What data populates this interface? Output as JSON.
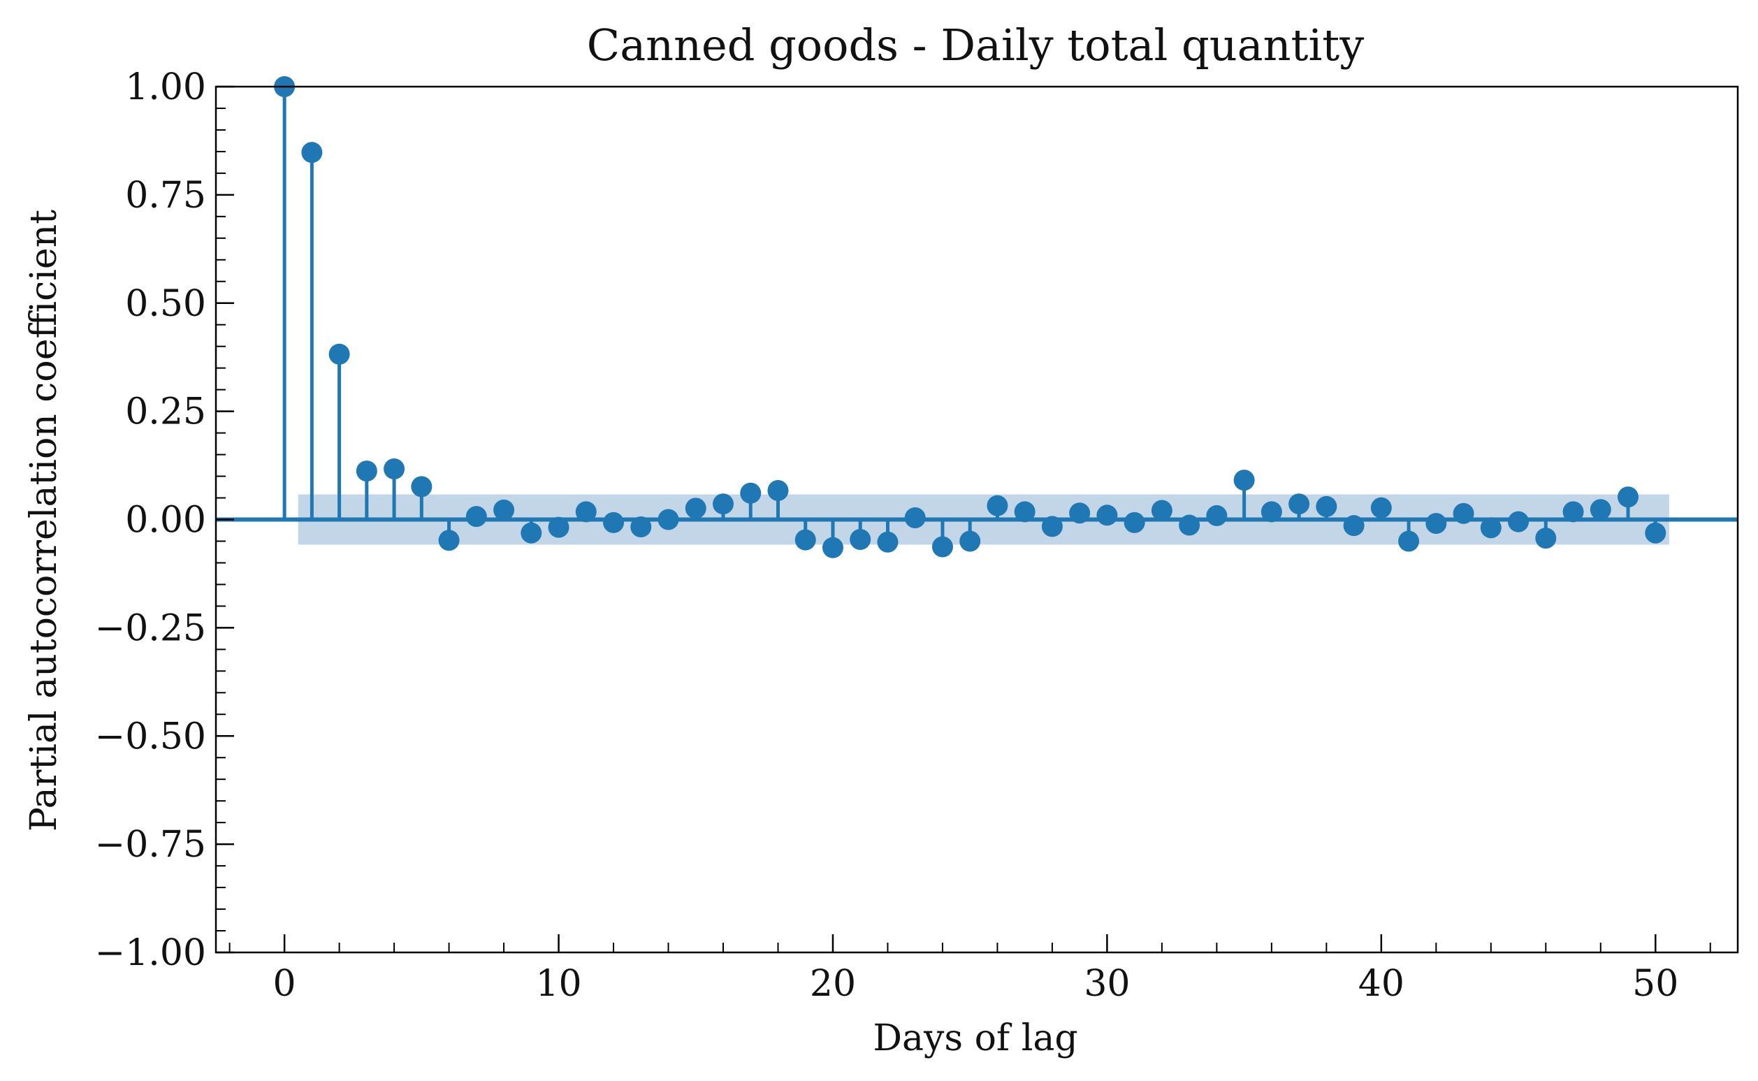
{
  "chart_data": {
    "type": "stem",
    "title": "Canned goods - Daily total quantity",
    "xlabel": "Days of lag",
    "ylabel": "Partial autocorrelation coefficient",
    "xlim": [
      -2.5,
      53
    ],
    "ylim": [
      -1.0,
      1.0
    ],
    "x_ticks": [
      0,
      10,
      20,
      30,
      40,
      50
    ],
    "x_tick_labels": [
      "0",
      "10",
      "20",
      "30",
      "40",
      "50"
    ],
    "y_ticks": [
      1.0,
      0.75,
      0.5,
      0.25,
      0.0,
      -0.25,
      -0.5,
      -0.75,
      -1.0
    ],
    "y_tick_labels": [
      "1.00",
      "0.75",
      "0.50",
      "0.25",
      "0.00",
      "−0.25",
      "−0.50",
      "−0.75",
      "−1.00"
    ],
    "grid": false,
    "colors": {
      "series": "#1f77b4",
      "band": "#c3d6e8"
    },
    "confidence_band": {
      "x": [
        0.5,
        50.5
      ],
      "y": [
        -0.058,
        0.058
      ]
    },
    "lags": [
      0,
      1,
      2,
      3,
      4,
      5,
      6,
      7,
      8,
      9,
      10,
      11,
      12,
      13,
      14,
      15,
      16,
      17,
      18,
      19,
      20,
      21,
      22,
      23,
      24,
      25,
      26,
      27,
      28,
      29,
      30,
      31,
      32,
      33,
      34,
      35,
      36,
      37,
      38,
      39,
      40,
      41,
      42,
      43,
      44,
      45,
      46,
      47,
      48,
      49,
      50
    ],
    "values": [
      1.0,
      0.848,
      0.382,
      0.112,
      0.117,
      0.076,
      -0.048,
      0.007,
      0.022,
      -0.031,
      -0.018,
      0.018,
      -0.007,
      -0.017,
      0.0,
      0.026,
      0.036,
      0.061,
      0.067,
      -0.047,
      -0.065,
      -0.046,
      -0.052,
      0.004,
      -0.063,
      -0.05,
      0.032,
      0.018,
      -0.016,
      0.015,
      0.01,
      -0.007,
      0.021,
      -0.013,
      0.009,
      0.091,
      0.018,
      0.036,
      0.03,
      -0.014,
      0.027,
      -0.05,
      -0.009,
      0.014,
      -0.019,
      -0.005,
      -0.043,
      0.018,
      0.023,
      0.052,
      -0.031
    ]
  }
}
